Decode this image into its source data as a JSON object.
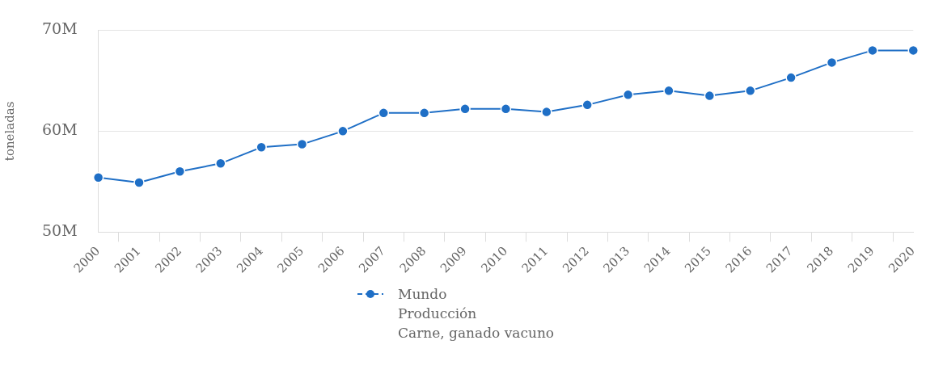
{
  "chart_data": {
    "type": "line",
    "ylabel": "toneladas",
    "categories": [
      "2000",
      "2001",
      "2002",
      "2003",
      "2004",
      "2005",
      "2006",
      "2007",
      "2008",
      "2009",
      "2010",
      "2011",
      "2012",
      "2013",
      "2014",
      "2015",
      "2016",
      "2017",
      "2018",
      "2019",
      "2020"
    ],
    "series": [
      {
        "name": "Mundo\nProducción\nCarne, ganado vacuno",
        "color": "#1f6fc6",
        "values": [
          55.4,
          54.9,
          56.0,
          56.8,
          58.4,
          58.7,
          60.0,
          61.8,
          61.8,
          62.2,
          62.2,
          61.9,
          62.6,
          63.6,
          64.0,
          63.5,
          64.0,
          65.3,
          66.8,
          68.0,
          68.0
        ]
      }
    ],
    "ylim": [
      50,
      70
    ],
    "yticks": [
      {
        "value": 50,
        "label": "50M"
      },
      {
        "value": 60,
        "label": "60M"
      },
      {
        "value": 70,
        "label": "70M"
      }
    ],
    "grid": "y",
    "legend": "bottom",
    "marker": "circle",
    "line_style": "solid"
  }
}
